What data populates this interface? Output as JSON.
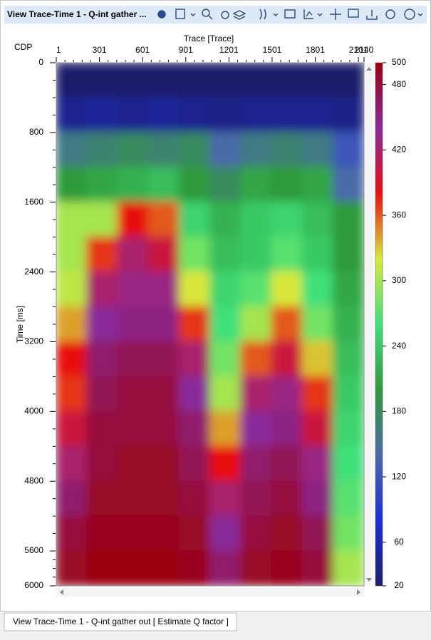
{
  "window_title": "View Trace-Time 1 - Q-int gather ...",
  "tab_label": "View Trace-Time 1 - Q-int gather  out [ Estimate Q factor ]",
  "chart_data": {
    "type": "heatmap",
    "x_label": "Trace [Trace]",
    "x_header": "CDP",
    "y_label": "Time [ms]",
    "xlim": [
      1,
      2140
    ],
    "xticks": [
      1,
      301,
      601,
      901,
      1201,
      1501,
      1801,
      2101,
      2140
    ],
    "ylim": [
      0,
      6000
    ],
    "yticks": [
      0,
      800,
      1600,
      2400,
      3200,
      4000,
      4800,
      5600,
      6000
    ],
    "zlim": [
      20,
      500
    ],
    "zticks": [
      20,
      60,
      120,
      180,
      240,
      300,
      360,
      420,
      480,
      500
    ],
    "colormap": [
      "#1c1f6b",
      "#1a2fd6",
      "#4a6aa8",
      "#2e9a3a",
      "#3fe07a",
      "#d8e83a",
      "#e81010",
      "#8a2a9a",
      "#9a0010"
    ],
    "z": [
      [
        20,
        20,
        20,
        20,
        20,
        20,
        20,
        20,
        20,
        20
      ],
      [
        40,
        45,
        40,
        45,
        40,
        35,
        40,
        40,
        40,
        35
      ],
      [
        160,
        170,
        180,
        170,
        180,
        140,
        160,
        170,
        160,
        120
      ],
      [
        200,
        210,
        220,
        230,
        200,
        180,
        210,
        200,
        210,
        140
      ],
      [
        300,
        300,
        380,
        360,
        250,
        220,
        240,
        250,
        230,
        200
      ],
      [
        300,
        370,
        420,
        400,
        280,
        230,
        240,
        270,
        240,
        200
      ],
      [
        310,
        420,
        430,
        430,
        320,
        250,
        270,
        320,
        260,
        210
      ],
      [
        340,
        440,
        450,
        450,
        370,
        260,
        300,
        360,
        280,
        220
      ],
      [
        380,
        460,
        470,
        470,
        420,
        280,
        360,
        400,
        330,
        230
      ],
      [
        370,
        470,
        480,
        480,
        440,
        300,
        420,
        430,
        370,
        240
      ],
      [
        400,
        480,
        480,
        480,
        460,
        340,
        440,
        450,
        400,
        250
      ],
      [
        420,
        480,
        490,
        490,
        470,
        380,
        460,
        470,
        430,
        260
      ],
      [
        460,
        490,
        490,
        490,
        480,
        420,
        470,
        480,
        450,
        270
      ],
      [
        480,
        495,
        495,
        495,
        490,
        440,
        480,
        490,
        470,
        280
      ],
      [
        490,
        500,
        500,
        500,
        495,
        460,
        490,
        495,
        480,
        300
      ]
    ]
  }
}
